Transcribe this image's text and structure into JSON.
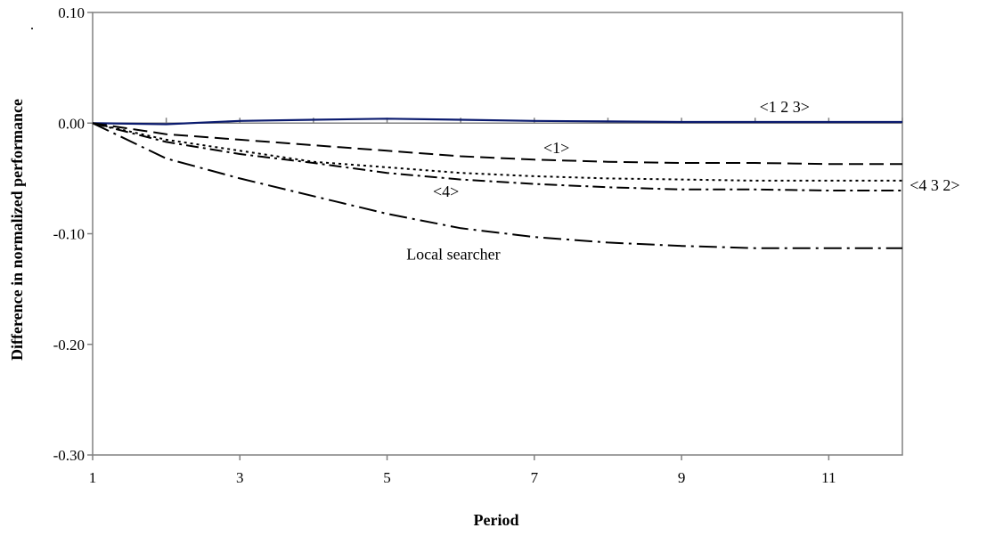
{
  "chart_data": {
    "type": "line",
    "title": "",
    "xlabel": "Period",
    "ylabel": "Difference in normalized performance",
    "corner_mark": ".",
    "xlim": [
      1,
      12
    ],
    "ylim": [
      -0.3,
      0.1
    ],
    "x_ticks": [
      1,
      3,
      5,
      7,
      9,
      11
    ],
    "y_ticks": [
      0.1,
      0.0,
      -0.1,
      -0.2,
      -0.3
    ],
    "y_tick_labels": [
      "0.10",
      "0.00",
      "-0.10",
      "-0.20",
      "-0.30"
    ],
    "grid": false,
    "legend": "none",
    "x": [
      1,
      2,
      3,
      4,
      5,
      6,
      7,
      8,
      9,
      10,
      11,
      12
    ],
    "series": [
      {
        "name": "<1 2 3>",
        "style": "solid",
        "color": "#0a1a6e",
        "values": [
          0.0,
          -0.001,
          0.002,
          0.003,
          0.004,
          0.003,
          0.002,
          0.0015,
          0.001,
          0.001,
          0.001,
          0.001
        ]
      },
      {
        "name": "<1>",
        "style": "long-dash",
        "color": "#000000",
        "values": [
          0.0,
          -0.01,
          -0.015,
          -0.02,
          -0.025,
          -0.03,
          -0.033,
          -0.035,
          -0.036,
          -0.036,
          -0.037,
          -0.037
        ]
      },
      {
        "name": "<4 3 2>",
        "style": "dotted",
        "color": "#000000",
        "values": [
          0.0,
          -0.015,
          -0.025,
          -0.035,
          -0.04,
          -0.045,
          -0.048,
          -0.05,
          -0.051,
          -0.052,
          -0.052,
          -0.052
        ]
      },
      {
        "name": "<4>",
        "style": "dash-dot",
        "color": "#000000",
        "values": [
          0.0,
          -0.017,
          -0.028,
          -0.036,
          -0.045,
          -0.051,
          -0.055,
          -0.058,
          -0.06,
          -0.06,
          -0.061,
          -0.061
        ]
      },
      {
        "name": "Local searcher",
        "style": "long-dash-dot",
        "color": "#000000",
        "values": [
          0.0,
          -0.032,
          -0.05,
          -0.066,
          -0.082,
          -0.095,
          -0.103,
          -0.108,
          -0.111,
          -0.113,
          -0.113,
          -0.113
        ]
      }
    ]
  }
}
